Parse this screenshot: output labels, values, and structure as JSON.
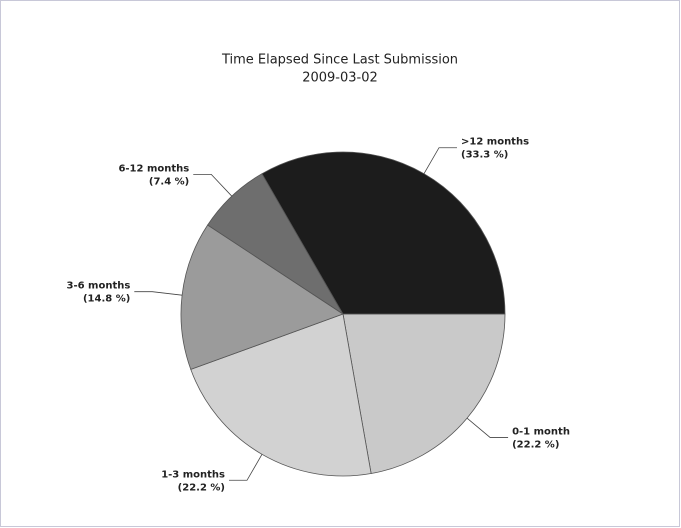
{
  "chart_data": {
    "type": "pie",
    "title": "Time Elapsed Since Last Submission",
    "subtitle": "2009-03-02",
    "categories": [
      "0-1 month",
      "1-3 months",
      "3-6 months",
      "6-12 months",
      ">12 months"
    ],
    "values": [
      22.2,
      22.2,
      14.8,
      7.4,
      33.3
    ],
    "value_labels": [
      "(22.2 %)",
      "(22.2 %)",
      "(14.8 %)",
      "(7.4 %)",
      "(33.3 %)"
    ],
    "colors": [
      "#c9c9c9",
      "#d2d2d2",
      "#9b9b9b",
      "#6e6e6e",
      "#1c1c1c"
    ]
  }
}
